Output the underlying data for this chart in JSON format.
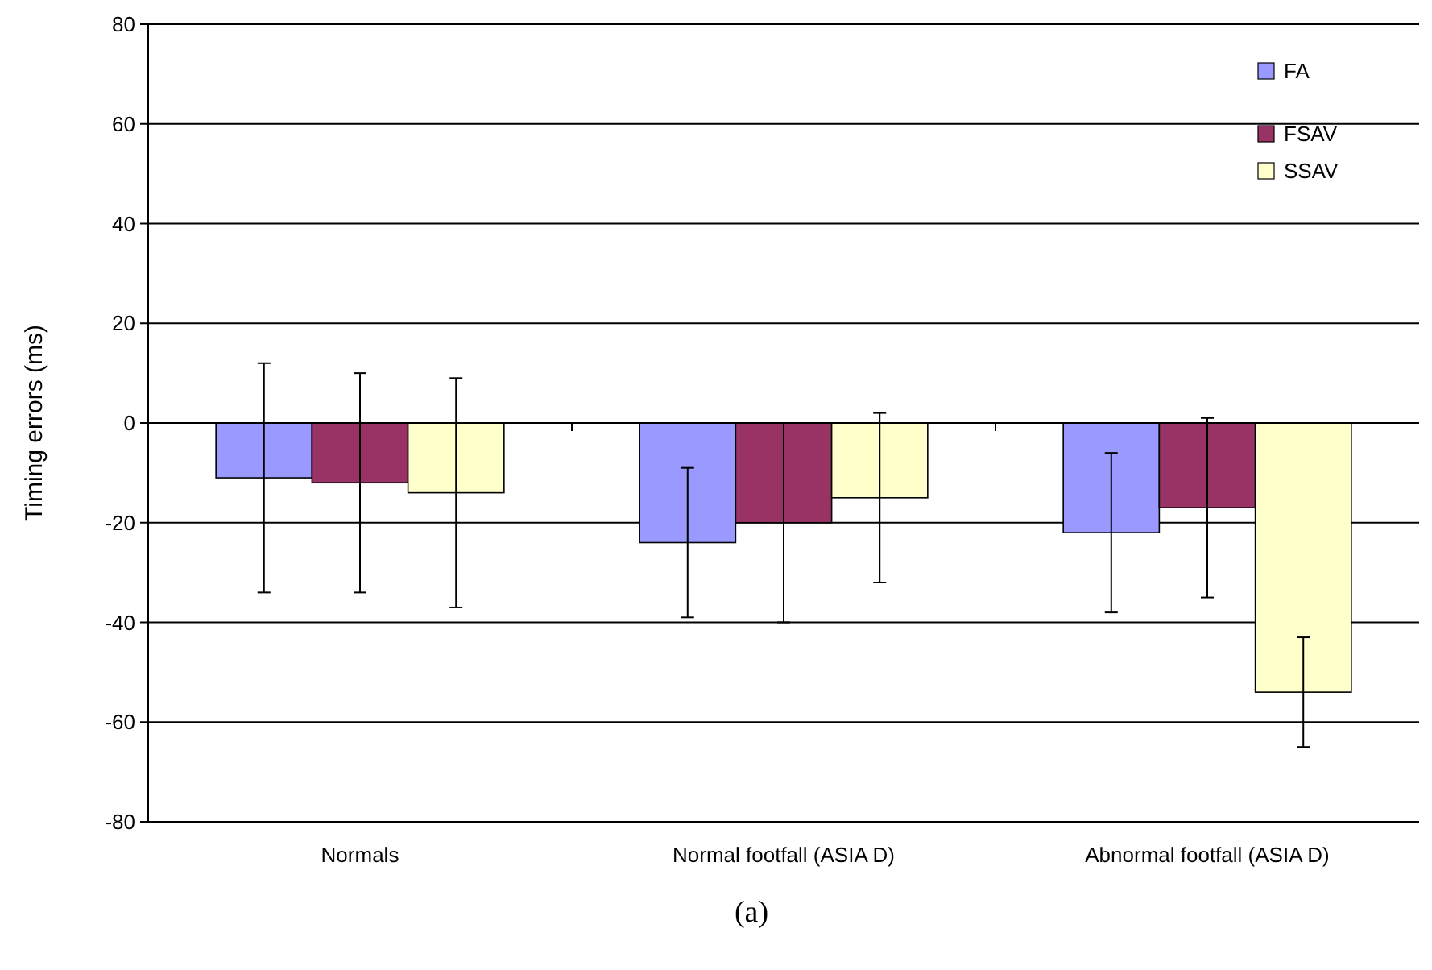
{
  "chart_data": {
    "type": "bar",
    "ylabel": "Timing errors (ms)",
    "categories": [
      "Normals",
      "Normal footfall (ASIA D)",
      "Abnormal footfall (ASIA D)"
    ],
    "series": [
      {
        "name": "FA",
        "color": "#9999ff",
        "values": [
          -11,
          -24,
          -22
        ],
        "errors": [
          23,
          15,
          16
        ]
      },
      {
        "name": "FSAV",
        "color": "#993366",
        "values": [
          -12,
          -20,
          -17
        ],
        "errors": [
          22,
          20,
          18
        ]
      },
      {
        "name": "SSAV",
        "color": "#ffffcc",
        "values": [
          -14,
          -15,
          -54
        ],
        "errors": [
          23,
          17,
          11
        ]
      }
    ],
    "ylim": [
      -80,
      80
    ],
    "yticks": [
      -80,
      -60,
      -40,
      -20,
      0,
      20,
      40,
      60,
      80
    ],
    "grid": "y",
    "legend": "top right",
    "annotations": [
      "(a)"
    ]
  }
}
